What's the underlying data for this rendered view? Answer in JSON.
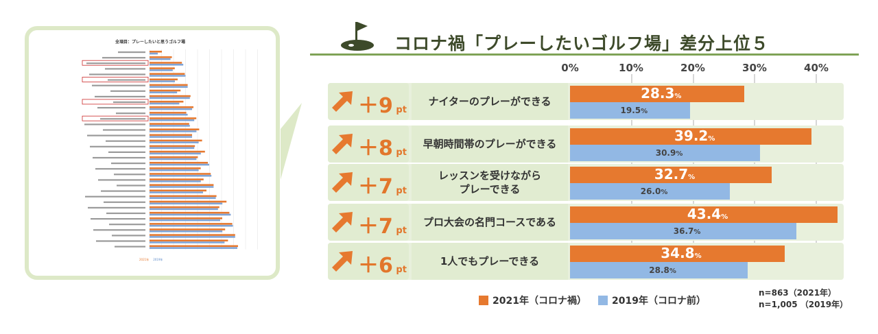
{
  "header": {
    "title": "コロナ禍「プレーしたいゴルフ場」差分上位５"
  },
  "thumbnail": {
    "title": "全項目：プレーしたいと思うゴルフ場",
    "legend": [
      "2021年",
      "2019年"
    ]
  },
  "chart_data": {
    "type": "bar",
    "orientation": "horizontal",
    "title": "コロナ禍「プレーしたいゴルフ場」差分上位５",
    "ticks": [
      "0%",
      "10%",
      "20%",
      "30%",
      "40%"
    ],
    "xlim": [
      0,
      43.4
    ],
    "categories": [
      "ナイターのプレーができる",
      "早朝時間帯のプレーができる",
      "レッスンを受けながら\nプレーできる",
      "プロ大会の名門コースである",
      "1人でもプレーできる"
    ],
    "diff_pt": [
      "＋9",
      "＋8",
      "＋7",
      "＋7",
      "＋6"
    ],
    "pt_unit": "pt",
    "series": [
      {
        "name": "2021年（コロナ禍）",
        "values": [
          28.3,
          39.2,
          32.7,
          43.4,
          34.8
        ],
        "color": "#e6792f"
      },
      {
        "name": "2019年（コロナ前）",
        "values": [
          19.5,
          30.9,
          26.0,
          36.7,
          28.8
        ],
        "color": "#92b8e4"
      }
    ],
    "value_unit": "%",
    "legend_position": "bottom",
    "notes": [
      "n=863（2021年）",
      "n=1,005 （2019年）"
    ]
  }
}
